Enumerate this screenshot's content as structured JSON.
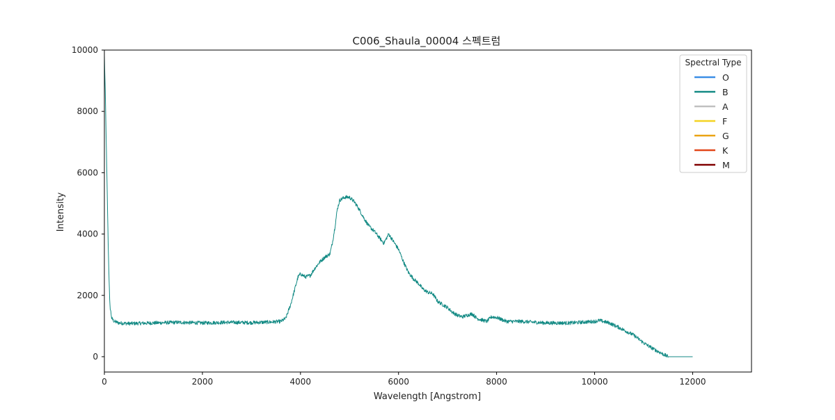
{
  "chart_data": {
    "type": "line",
    "title": "C006_Shaula_00004 스펙트럼",
    "xlabel": "Wavelength [Angstrom]",
    "ylabel": "Intensity",
    "xlim": [
      0,
      13200
    ],
    "ylim": [
      -500,
      10000
    ],
    "xticks": [
      0,
      2000,
      4000,
      6000,
      8000,
      10000,
      12000
    ],
    "yticks": [
      0,
      2000,
      4000,
      6000,
      8000,
      10000
    ],
    "grid": false,
    "legend": {
      "title": "Spectral Type",
      "placement": "top-right",
      "entries": [
        {
          "label": "O",
          "color": "#3a8ee6"
        },
        {
          "label": "B",
          "color": "#138a84"
        },
        {
          "label": "A",
          "color": "#c0c0c0"
        },
        {
          "label": "F",
          "color": "#f4d321"
        },
        {
          "label": "G",
          "color": "#eaa312"
        },
        {
          "label": "K",
          "color": "#e2471a"
        },
        {
          "label": "M",
          "color": "#800000"
        }
      ]
    },
    "series": [
      {
        "color": "#138a84",
        "noise": 60,
        "x": [
          0,
          20,
          50,
          80,
          110,
          150,
          200,
          300,
          500,
          1000,
          1500,
          2000,
          2500,
          3000,
          3400,
          3600,
          3700,
          3800,
          3900,
          3950,
          4000,
          4100,
          4200,
          4300,
          4400,
          4500,
          4600,
          4650,
          4700,
          4750,
          4800,
          4850,
          4900,
          5000,
          5100,
          5200,
          5300,
          5400,
          5500,
          5600,
          5700,
          5800,
          5900,
          6000,
          6100,
          6200,
          6300,
          6400,
          6500,
          6600,
          6700,
          6800,
          6900,
          7000,
          7100,
          7200,
          7300,
          7400,
          7500,
          7600,
          7700,
          7800,
          7900,
          8000,
          8200,
          8500,
          8800,
          9000,
          9500,
          10000,
          10100,
          10300,
          10500,
          10800,
          11000,
          11200,
          11400,
          11500,
          11700,
          12000
        ],
        "y": [
          9800,
          8500,
          6000,
          3500,
          1700,
          1250,
          1150,
          1100,
          1080,
          1100,
          1120,
          1100,
          1120,
          1110,
          1130,
          1150,
          1250,
          1700,
          2300,
          2600,
          2700,
          2600,
          2650,
          2900,
          3100,
          3250,
          3350,
          3700,
          4200,
          4800,
          5100,
          5150,
          5200,
          5200,
          5050,
          4800,
          4500,
          4250,
          4100,
          3900,
          3700,
          4000,
          3750,
          3500,
          3100,
          2750,
          2550,
          2400,
          2200,
          2100,
          2050,
          1800,
          1700,
          1600,
          1450,
          1350,
          1300,
          1350,
          1400,
          1250,
          1200,
          1150,
          1300,
          1280,
          1150,
          1150,
          1120,
          1100,
          1100,
          1150,
          1180,
          1100,
          950,
          700,
          450,
          250,
          80,
          0,
          0,
          0
        ]
      }
    ]
  }
}
